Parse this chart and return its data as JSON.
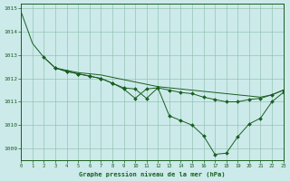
{
  "title": "Graphe pression niveau de la mer (hPa)",
  "background_color": "#cceaea",
  "grid_color": "#88bbaa",
  "line_color": "#1a5e20",
  "marker_color": "#1a5e20",
  "xlim": [
    0,
    23
  ],
  "ylim": [
    1008.5,
    1015.2
  ],
  "yticks": [
    1009,
    1010,
    1011,
    1012,
    1013,
    1014,
    1015
  ],
  "xticks": [
    0,
    1,
    2,
    3,
    4,
    5,
    6,
    7,
    8,
    9,
    10,
    11,
    12,
    13,
    14,
    15,
    16,
    17,
    18,
    19,
    20,
    21,
    22,
    23
  ],
  "series1_x": [
    0,
    1,
    2,
    3,
    4,
    5,
    6,
    7,
    8,
    9,
    10,
    11,
    12,
    13,
    14,
    15,
    16,
    17,
    18,
    19,
    20,
    21,
    22,
    23
  ],
  "series1_y": [
    1014.85,
    1013.5,
    1012.9,
    1012.45,
    1012.35,
    1012.25,
    1012.2,
    1012.15,
    1012.05,
    1011.95,
    1011.85,
    1011.75,
    1011.65,
    1011.6,
    1011.55,
    1011.5,
    1011.45,
    1011.4,
    1011.35,
    1011.3,
    1011.25,
    1011.2,
    1011.3,
    1011.5
  ],
  "series2_x": [
    2,
    3,
    4,
    5,
    6,
    7,
    8,
    9,
    10,
    11,
    12,
    13,
    14,
    15,
    16,
    17,
    18,
    19,
    20,
    21,
    22,
    23
  ],
  "series2_y": [
    1012.9,
    1012.45,
    1012.3,
    1012.2,
    1012.1,
    1012.0,
    1011.8,
    1011.55,
    1011.15,
    1011.55,
    1011.6,
    1010.4,
    1010.2,
    1010.0,
    1009.55,
    1008.75,
    1008.8,
    1009.5,
    1010.05,
    1010.3,
    1011.0,
    1011.4
  ],
  "series3_x": [
    3,
    4,
    5,
    6,
    7,
    8,
    9,
    10,
    11,
    12,
    13,
    14,
    15,
    16,
    17,
    18,
    19,
    20,
    21,
    22,
    23
  ],
  "series3_y": [
    1012.45,
    1012.3,
    1012.2,
    1012.1,
    1012.0,
    1011.8,
    1011.6,
    1011.55,
    1011.15,
    1011.6,
    1011.5,
    1011.4,
    1011.35,
    1011.2,
    1011.1,
    1011.0,
    1011.0,
    1011.1,
    1011.15,
    1011.3,
    1011.5
  ]
}
